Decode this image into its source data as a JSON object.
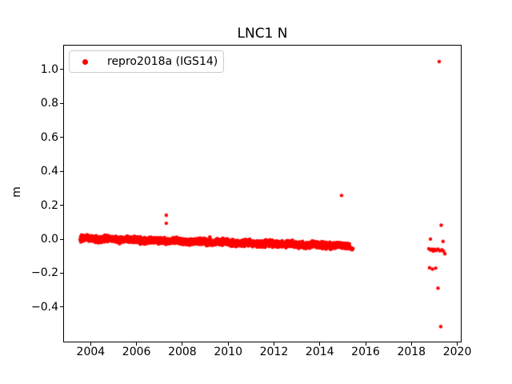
{
  "figure": {
    "title": "LNC1 N",
    "background_color": "#ffffff",
    "frame_color": "#000000"
  },
  "legend": {
    "label": "repro2018a (IGS14)",
    "marker_color": "#ff0000",
    "position": "upper left"
  },
  "chart_data": {
    "type": "scatter",
    "title": "LNC1 N",
    "xlabel": "",
    "ylabel": "m",
    "grid": false,
    "legend_position": "upper left",
    "marker_color": "#ff0000",
    "marker_radius_px": 2.2,
    "xlim": [
      2002.8,
      2020.19
    ],
    "ylim": [
      -0.608,
      1.146
    ],
    "x_ticks": [
      2004,
      2006,
      2008,
      2010,
      2012,
      2014,
      2016,
      2018,
      2020
    ],
    "y_ticks": [
      -0.4,
      -0.2,
      0.0,
      0.2,
      0.4,
      0.6,
      0.8,
      1.0
    ],
    "series": [
      {
        "name": "repro2018a (IGS14)",
        "color": "#ff0000",
        "band": {
          "description": "dense daily position time series, slow linear subsidence trend",
          "start_year": 2003.55,
          "end_year": 2015.3,
          "start_value": 0.005,
          "end_value": -0.04,
          "noise_std": 0.008,
          "seasonal_amp": 0.003,
          "points_per_year": 365
        },
        "outliers": [
          [
            2007.3,
            0.142
          ],
          [
            2007.3,
            0.094
          ],
          [
            2009.2,
            0.014
          ],
          [
            2014.95,
            0.258
          ],
          [
            2015.28,
            -0.048
          ],
          [
            2015.33,
            -0.056
          ],
          [
            2015.38,
            -0.05
          ],
          [
            2015.41,
            -0.062
          ],
          [
            2015.45,
            -0.055
          ],
          [
            2018.83,
            0.001
          ],
          [
            2019.38,
            -0.013
          ],
          [
            2018.76,
            -0.056
          ],
          [
            2018.84,
            -0.064
          ],
          [
            2018.9,
            -0.058
          ],
          [
            2018.96,
            -0.07
          ],
          [
            2019.02,
            -0.06
          ],
          [
            2019.08,
            -0.066
          ],
          [
            2019.16,
            -0.058
          ],
          [
            2019.24,
            -0.068
          ],
          [
            2019.33,
            -0.062
          ],
          [
            2019.4,
            -0.07
          ],
          [
            2019.46,
            -0.086
          ],
          [
            2018.79,
            -0.168
          ],
          [
            2018.92,
            -0.176
          ],
          [
            2019.06,
            -0.17
          ],
          [
            2019.16,
            -0.288
          ],
          [
            2019.28,
            -0.515
          ],
          [
            2019.3,
            0.083
          ],
          [
            2019.21,
            1.047
          ]
        ]
      }
    ]
  }
}
